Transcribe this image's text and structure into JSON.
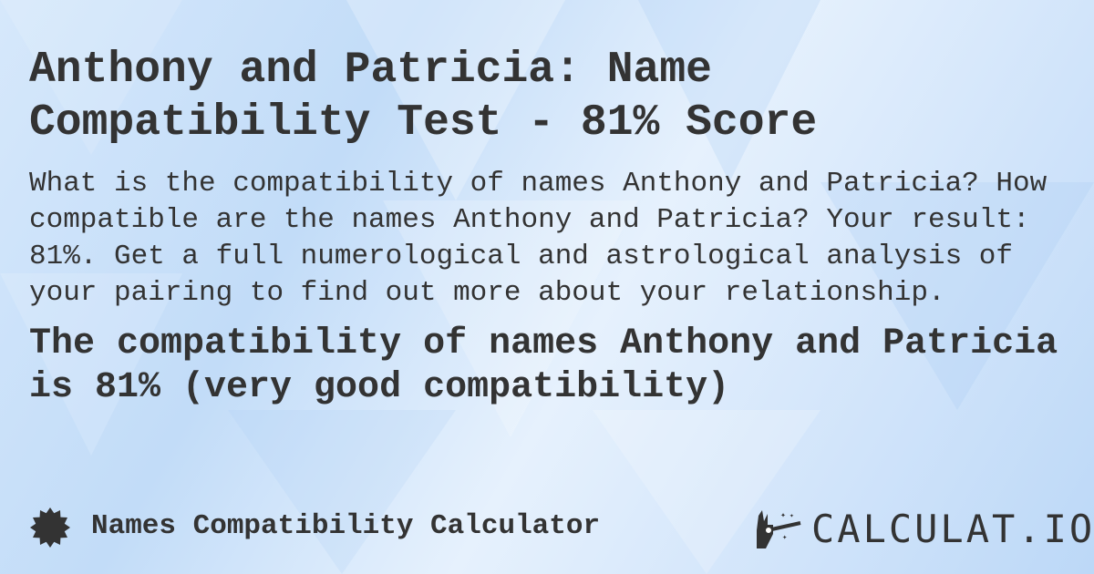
{
  "title": "Anthony and Patricia: Name Compatibility Test - 81% Score",
  "description": "What is the compatibility of names Anthony and Patricia? How compatible are the names Anthony and Patricia? Your result: 81%. Get a full numerological and astrological analysis of your pairing to find out more about your relationship.",
  "result": "The compatibility of names Anthony and Patricia is 81% (very good compatibility)",
  "footer": {
    "calculator_name": "Names Compatibility Calculator",
    "badge_icon": "badge-icon",
    "logo_text": "CALCULAT.IO",
    "logo_icon": "magic-hand-wand-icon"
  },
  "colors": {
    "text": "#333333",
    "background": "#c9e0f9"
  }
}
